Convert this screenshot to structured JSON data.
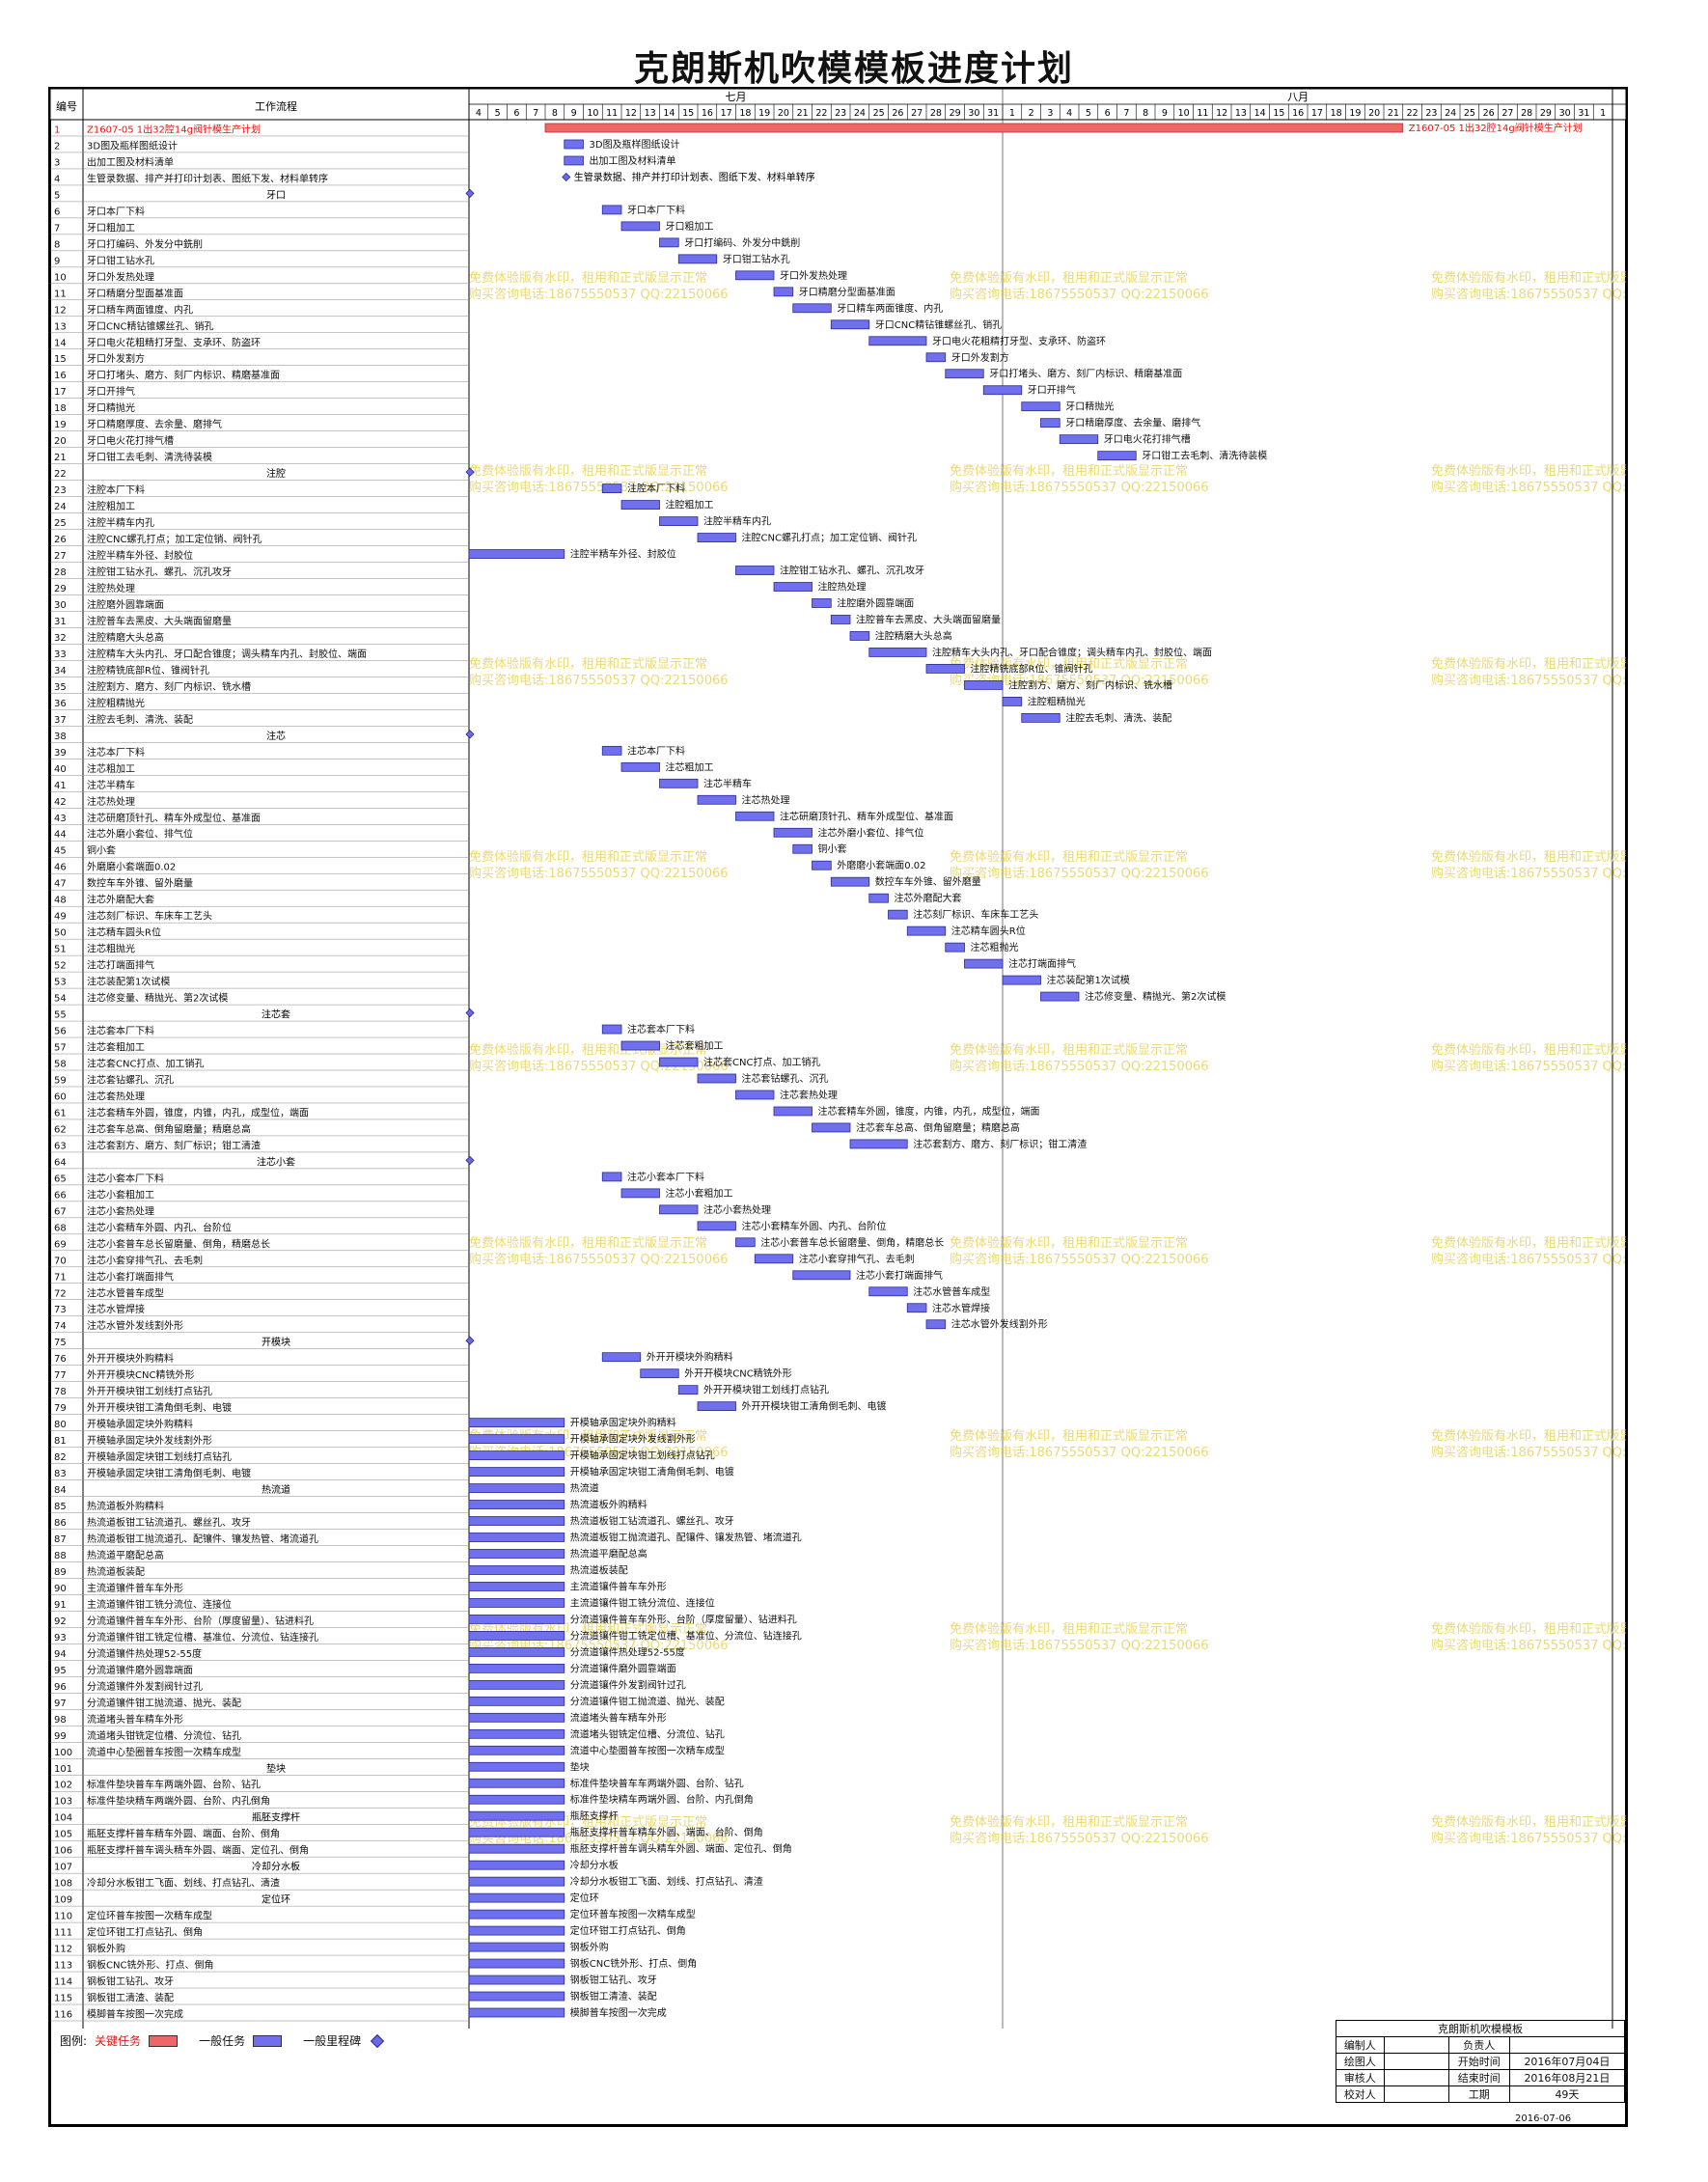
{
  "title": "克朗斯机吹模模板进度计划",
  "header": {
    "col_no": "编号",
    "col_task": "工作流程",
    "month1": "七月",
    "month2": "八月"
  },
  "legend": {
    "prefix": "图例:",
    "critical": "关键任务",
    "normal": "一般任务",
    "milestone": "一般里程碑",
    "critical_color": "#ee6666",
    "normal_color": "#7070ee",
    "milestone_color": "#6a6ae8"
  },
  "watermark": {
    "line1": "免费体验版有水印，租用和正式版显示正常",
    "line2": "购买咨询电话:18675550537 QQ:22150066",
    "color": "#e8d35a"
  },
  "title_block": {
    "project": "克朗斯机吹模模板",
    "rows": [
      [
        "编制人",
        "",
        "负责人",
        ""
      ],
      [
        "绘图人",
        "",
        "开始时间",
        "2016年07月04日"
      ],
      [
        "审核人",
        "",
        "结束时间",
        "2016年08月21日"
      ],
      [
        "校对人",
        "",
        "工期",
        "49天"
      ]
    ],
    "date": "2016-07-06"
  },
  "chart_data": {
    "type": "gantt",
    "x_unit": "date",
    "x_range": [
      "2016-07-04",
      "2016-09-01"
    ],
    "x_ticks": [
      "4",
      "5",
      "6",
      "7",
      "8",
      "9",
      "10",
      "11",
      "12",
      "13",
      "14",
      "15",
      "16",
      "17",
      "18",
      "19",
      "20",
      "21",
      "22",
      "23",
      "24",
      "25",
      "26",
      "27",
      "28",
      "29",
      "30",
      "31",
      "1",
      "2",
      "3",
      "4",
      "5",
      "6",
      "7",
      "8",
      "9",
      "10",
      "11",
      "12",
      "13",
      "14",
      "15",
      "16",
      "17",
      "18",
      "19",
      "20",
      "21",
      "22",
      "23",
      "24",
      "25",
      "26",
      "27",
      "28",
      "29",
      "30",
      "31",
      "1"
    ],
    "months": [
      {
        "name": "七月",
        "from": "2016-07-04",
        "to": "2016-07-31"
      },
      {
        "name": "八月",
        "from": "2016-08-01",
        "to": "2016-08-31"
      }
    ],
    "tasks": [
      {
        "id": 1,
        "name": "Z1607-05 1出32腔14g阀针模生产计划",
        "kind": "critical",
        "start": "2016-07-08",
        "end": "2016-08-21"
      },
      {
        "id": 2,
        "name": "3D图及瓶样图纸设计",
        "kind": "task",
        "start": "2016-07-09",
        "end": "2016-07-09"
      },
      {
        "id": 3,
        "name": "出加工图及材料清单",
        "kind": "task",
        "start": "2016-07-09",
        "end": "2016-07-09"
      },
      {
        "id": 4,
        "name": "生管录数据、排产并打印计划表、图纸下发、材料单转序",
        "kind": "milestone",
        "start": "2016-07-09",
        "end": "2016-07-09"
      },
      {
        "id": 5,
        "name": "牙口",
        "kind": "summary",
        "start": "2016-07-04",
        "end": "2016-07-04"
      },
      {
        "id": 6,
        "name": "牙口本厂下料",
        "kind": "task",
        "start": "2016-07-11",
        "end": "2016-07-11"
      },
      {
        "id": 7,
        "name": "牙口粗加工",
        "kind": "task",
        "start": "2016-07-12",
        "end": "2016-07-13"
      },
      {
        "id": 8,
        "name": "牙口打编码、外发分中銑削",
        "kind": "task",
        "start": "2016-07-14",
        "end": "2016-07-14"
      },
      {
        "id": 9,
        "name": "牙口钳工钻水孔",
        "kind": "task",
        "start": "2016-07-15",
        "end": "2016-07-16"
      },
      {
        "id": 10,
        "name": "牙口外发热处理",
        "kind": "task",
        "start": "2016-07-18",
        "end": "2016-07-19"
      },
      {
        "id": 11,
        "name": "牙口精磨分型面基准面",
        "kind": "task",
        "start": "2016-07-20",
        "end": "2016-07-20"
      },
      {
        "id": 12,
        "name": "牙口精车两面锥度、内孔",
        "kind": "task",
        "start": "2016-07-21",
        "end": "2016-07-22"
      },
      {
        "id": 13,
        "name": "牙口CNC精钻锥螺丝孔、销孔",
        "kind": "task",
        "start": "2016-07-23",
        "end": "2016-07-24"
      },
      {
        "id": 14,
        "name": "牙口电火花粗精打牙型、支承环、防盗环",
        "kind": "task",
        "start": "2016-07-25",
        "end": "2016-07-27"
      },
      {
        "id": 15,
        "name": "牙口外发割方",
        "kind": "task",
        "start": "2016-07-28",
        "end": "2016-07-28"
      },
      {
        "id": 16,
        "name": "牙口打堵头、磨方、刻厂内标识、精磨基准面",
        "kind": "task",
        "start": "2016-07-29",
        "end": "2016-07-30"
      },
      {
        "id": 17,
        "name": "牙口开排气",
        "kind": "task",
        "start": "2016-07-31",
        "end": "2016-08-01"
      },
      {
        "id": 18,
        "name": "牙口精抛光",
        "kind": "task",
        "start": "2016-08-02",
        "end": "2016-08-03"
      },
      {
        "id": 19,
        "name": "牙口精磨厚度、去余量、磨排气",
        "kind": "task",
        "start": "2016-08-03",
        "end": "2016-08-03"
      },
      {
        "id": 20,
        "name": "牙口电火花打排气槽",
        "kind": "task",
        "start": "2016-08-04",
        "end": "2016-08-05"
      },
      {
        "id": 21,
        "name": "牙口钳工去毛刺、清洗待装模",
        "kind": "task",
        "start": "2016-08-06",
        "end": "2016-08-07"
      },
      {
        "id": 22,
        "name": "注腔",
        "kind": "summary",
        "start": "2016-07-04",
        "end": "2016-07-04"
      },
      {
        "id": 23,
        "name": "注腔本厂下料",
        "kind": "task",
        "start": "2016-07-11",
        "end": "2016-07-11"
      },
      {
        "id": 24,
        "name": "注腔粗加工",
        "kind": "task",
        "start": "2016-07-12",
        "end": "2016-07-13"
      },
      {
        "id": 25,
        "name": "注腔半精车内孔",
        "kind": "task",
        "start": "2016-07-14",
        "end": "2016-07-15"
      },
      {
        "id": 26,
        "name": "注腔CNC螺孔打点；加工定位销、阀针孔",
        "kind": "task",
        "start": "2016-07-16",
        "end": "2016-07-17"
      },
      {
        "id": 27,
        "name": "注腔半精车外径、封胶位",
        "kind": "task",
        "start": "2016-07-04",
        "end": "2016-07-08"
      },
      {
        "id": 28,
        "name": "注腔钳工钻水孔、螺孔、沉孔攻牙",
        "kind": "task",
        "start": "2016-07-18",
        "end": "2016-07-19"
      },
      {
        "id": 29,
        "name": "注腔热处理",
        "kind": "task",
        "start": "2016-07-20",
        "end": "2016-07-21"
      },
      {
        "id": 30,
        "name": "注腔磨外圆靠端面",
        "kind": "task",
        "start": "2016-07-22",
        "end": "2016-07-22"
      },
      {
        "id": 31,
        "name": "注腔普车去黑皮、大头端面留磨量",
        "kind": "task",
        "start": "2016-07-23",
        "end": "2016-07-23"
      },
      {
        "id": 32,
        "name": "注腔精磨大头总高",
        "kind": "task",
        "start": "2016-07-24",
        "end": "2016-07-24"
      },
      {
        "id": 33,
        "name": "注腔精车大头内孔、牙口配合锥度；调头精车内孔、封胶位、端面",
        "kind": "task",
        "start": "2016-07-25",
        "end": "2016-07-27"
      },
      {
        "id": 34,
        "name": "注腔精铣底部R位、锥阀针孔",
        "kind": "task",
        "start": "2016-07-28",
        "end": "2016-07-29"
      },
      {
        "id": 35,
        "name": "注腔割方、磨方、刻厂内标识、铣水槽",
        "kind": "task",
        "start": "2016-07-30",
        "end": "2016-07-31"
      },
      {
        "id": 36,
        "name": "注腔粗精抛光",
        "kind": "task",
        "start": "2016-08-01",
        "end": "2016-08-01"
      },
      {
        "id": 37,
        "name": "注腔去毛刺、清洗、装配",
        "kind": "task",
        "start": "2016-08-02",
        "end": "2016-08-03"
      },
      {
        "id": 38,
        "name": "注芯",
        "kind": "summary",
        "start": "2016-07-04",
        "end": "2016-07-04"
      },
      {
        "id": 39,
        "name": "注芯本厂下料",
        "kind": "task",
        "start": "2016-07-11",
        "end": "2016-07-11"
      },
      {
        "id": 40,
        "name": "注芯粗加工",
        "kind": "task",
        "start": "2016-07-12",
        "end": "2016-07-13"
      },
      {
        "id": 41,
        "name": "注芯半精车",
        "kind": "task",
        "start": "2016-07-14",
        "end": "2016-07-15"
      },
      {
        "id": 42,
        "name": "注芯热处理",
        "kind": "task",
        "start": "2016-07-16",
        "end": "2016-07-17"
      },
      {
        "id": 43,
        "name": "注芯研磨顶针孔、精车外成型位、基准面",
        "kind": "task",
        "start": "2016-07-18",
        "end": "2016-07-19"
      },
      {
        "id": 44,
        "name": "注芯外磨小套位、排气位",
        "kind": "task",
        "start": "2016-07-20",
        "end": "2016-07-21"
      },
      {
        "id": 45,
        "name": "铜小套",
        "kind": "task",
        "start": "2016-07-21",
        "end": "2016-07-21"
      },
      {
        "id": 46,
        "name": "外磨磨小套端面0.02",
        "kind": "task",
        "start": "2016-07-22",
        "end": "2016-07-22"
      },
      {
        "id": 47,
        "name": "数控车车外锥、留外磨量",
        "kind": "task",
        "start": "2016-07-23",
        "end": "2016-07-24"
      },
      {
        "id": 48,
        "name": "注芯外磨配大套",
        "kind": "task",
        "start": "2016-07-25",
        "end": "2016-07-25"
      },
      {
        "id": 49,
        "name": "注芯刻厂标识、车床车工艺头",
        "kind": "task",
        "start": "2016-07-26",
        "end": "2016-07-26"
      },
      {
        "id": 50,
        "name": "注芯精车圆头R位",
        "kind": "task",
        "start": "2016-07-27",
        "end": "2016-07-28"
      },
      {
        "id": 51,
        "name": "注芯粗抛光",
        "kind": "task",
        "start": "2016-07-29",
        "end": "2016-07-29"
      },
      {
        "id": 52,
        "name": "注芯打端面排气",
        "kind": "task",
        "start": "2016-07-30",
        "end": "2016-07-31"
      },
      {
        "id": 53,
        "name": "注芯装配第1次试模",
        "kind": "task",
        "start": "2016-08-01",
        "end": "2016-08-02"
      },
      {
        "id": 54,
        "name": "注芯修变量、精抛光、第2次试模",
        "kind": "task",
        "start": "2016-08-03",
        "end": "2016-08-04"
      },
      {
        "id": 55,
        "name": "注芯套",
        "kind": "summary",
        "start": "2016-07-04",
        "end": "2016-07-04"
      },
      {
        "id": 56,
        "name": "注芯套本厂下料",
        "kind": "task",
        "start": "2016-07-11",
        "end": "2016-07-11"
      },
      {
        "id": 57,
        "name": "注芯套粗加工",
        "kind": "task",
        "start": "2016-07-12",
        "end": "2016-07-13"
      },
      {
        "id": 58,
        "name": "注芯套CNC打点、加工销孔",
        "kind": "task",
        "start": "2016-07-14",
        "end": "2016-07-15"
      },
      {
        "id": 59,
        "name": "注芯套钻螺孔、沉孔",
        "kind": "task",
        "start": "2016-07-16",
        "end": "2016-07-17"
      },
      {
        "id": 60,
        "name": "注芯套热处理",
        "kind": "task",
        "start": "2016-07-18",
        "end": "2016-07-19"
      },
      {
        "id": 61,
        "name": "注芯套精车外圆，锥度，内锥，内孔，成型位，端面",
        "kind": "task",
        "start": "2016-07-20",
        "end": "2016-07-21"
      },
      {
        "id": 62,
        "name": "注芯套车总高、倒角留磨量；精磨总高",
        "kind": "task",
        "start": "2016-07-22",
        "end": "2016-07-23"
      },
      {
        "id": 63,
        "name": "注芯套割方、磨方、刻厂标识；钳工清渣",
        "kind": "task",
        "start": "2016-07-24",
        "end": "2016-07-26"
      },
      {
        "id": 64,
        "name": "注芯小套",
        "kind": "summary",
        "start": "2016-07-04",
        "end": "2016-07-04"
      },
      {
        "id": 65,
        "name": "注芯小套本厂下料",
        "kind": "task",
        "start": "2016-07-11",
        "end": "2016-07-11"
      },
      {
        "id": 66,
        "name": "注芯小套粗加工",
        "kind": "task",
        "start": "2016-07-12",
        "end": "2016-07-13"
      },
      {
        "id": 67,
        "name": "注芯小套热处理",
        "kind": "task",
        "start": "2016-07-14",
        "end": "2016-07-15"
      },
      {
        "id": 68,
        "name": "注芯小套精车外圆、内孔、台阶位",
        "kind": "task",
        "start": "2016-07-16",
        "end": "2016-07-17"
      },
      {
        "id": 69,
        "name": "注芯小套普车总长留磨量、倒角，精磨总长",
        "kind": "task",
        "start": "2016-07-18",
        "end": "2016-07-18"
      },
      {
        "id": 70,
        "name": "注芯小套穿排气孔、去毛刺",
        "kind": "task",
        "start": "2016-07-19",
        "end": "2016-07-20"
      },
      {
        "id": 71,
        "name": "注芯小套打端面排气",
        "kind": "task",
        "start": "2016-07-21",
        "end": "2016-07-23"
      },
      {
        "id": 72,
        "name": "注芯水管普车成型",
        "kind": "task",
        "start": "2016-07-25",
        "end": "2016-07-26"
      },
      {
        "id": 73,
        "name": "注芯水管焊接",
        "kind": "task",
        "start": "2016-07-27",
        "end": "2016-07-27"
      },
      {
        "id": 74,
        "name": "注芯水管外发线割外形",
        "kind": "task",
        "start": "2016-07-28",
        "end": "2016-07-28"
      },
      {
        "id": 75,
        "name": "开模块",
        "kind": "summary",
        "start": "2016-07-04",
        "end": "2016-07-04"
      },
      {
        "id": 76,
        "name": "外开开模块外购精料",
        "kind": "task",
        "start": "2016-07-11",
        "end": "2016-07-12"
      },
      {
        "id": 77,
        "name": "外开开模块CNC精铣外形",
        "kind": "task",
        "start": "2016-07-13",
        "end": "2016-07-14"
      },
      {
        "id": 78,
        "name": "外开开模块钳工划线打点钻孔",
        "kind": "task",
        "start": "2016-07-15",
        "end": "2016-07-15"
      },
      {
        "id": 79,
        "name": "外开开模块钳工清角倒毛刺、电镀",
        "kind": "task",
        "start": "2016-07-16",
        "end": "2016-07-17"
      },
      {
        "id": 80,
        "name": "开模轴承固定块外购精料",
        "kind": "task",
        "start": "2016-07-04",
        "end": "2016-07-08"
      },
      {
        "id": 81,
        "name": "开模轴承固定块外发线割外形",
        "kind": "task",
        "start": "2016-07-04",
        "end": "2016-07-08"
      },
      {
        "id": 82,
        "name": "开模轴承固定块钳工划线打点钻孔",
        "kind": "task",
        "start": "2016-07-04",
        "end": "2016-07-08"
      },
      {
        "id": 83,
        "name": "开模轴承固定块钳工清角倒毛刺、电镀",
        "kind": "task",
        "start": "2016-07-04",
        "end": "2016-07-08"
      },
      {
        "id": 84,
        "name": "热流道",
        "kind": "summary",
        "start": "2016-07-04",
        "end": "2016-07-08"
      },
      {
        "id": 85,
        "name": "热流道板外购精料",
        "kind": "task",
        "start": "2016-07-04",
        "end": "2016-07-08"
      },
      {
        "id": 86,
        "name": "热流道板钳工钻流道孔、螺丝孔、攻牙",
        "kind": "task",
        "start": "2016-07-04",
        "end": "2016-07-08"
      },
      {
        "id": 87,
        "name": "热流道板钳工抛流道孔、配镶件、镶发热管、堵流道孔",
        "kind": "task",
        "start": "2016-07-04",
        "end": "2016-07-08"
      },
      {
        "id": 88,
        "name": "热流道平磨配总高",
        "kind": "task",
        "start": "2016-07-04",
        "end": "2016-07-08"
      },
      {
        "id": 89,
        "name": "热流道板装配",
        "kind": "task",
        "start": "2016-07-04",
        "end": "2016-07-08"
      },
      {
        "id": 90,
        "name": "主流道镶件普车车外形",
        "kind": "task",
        "start": "2016-07-04",
        "end": "2016-07-08"
      },
      {
        "id": 91,
        "name": "主流道镶件钳工铣分流位、连接位",
        "kind": "task",
        "start": "2016-07-04",
        "end": "2016-07-08"
      },
      {
        "id": 92,
        "name": "分流道镶件普车车外形、台阶（厚度留量）、钻进料孔",
        "kind": "task",
        "start": "2016-07-04",
        "end": "2016-07-08"
      },
      {
        "id": 93,
        "name": "分流道镶件钳工铣定位槽、基准位、分流位、钻连接孔",
        "kind": "task",
        "start": "2016-07-04",
        "end": "2016-07-08"
      },
      {
        "id": 94,
        "name": "分流道镶件热处理52-55度",
        "kind": "task",
        "start": "2016-07-04",
        "end": "2016-07-08"
      },
      {
        "id": 95,
        "name": "分流道镶件磨外圆靠端面",
        "kind": "task",
        "start": "2016-07-04",
        "end": "2016-07-08"
      },
      {
        "id": 96,
        "name": "分流道镶件外发割阀针过孔",
        "kind": "task",
        "start": "2016-07-04",
        "end": "2016-07-08"
      },
      {
        "id": 97,
        "name": "分流道镶件钳工抛流道、抛光、装配",
        "kind": "task",
        "start": "2016-07-04",
        "end": "2016-07-08"
      },
      {
        "id": 98,
        "name": "流道堵头普车精车外形",
        "kind": "task",
        "start": "2016-07-04",
        "end": "2016-07-08"
      },
      {
        "id": 99,
        "name": "流道堵头钳铣定位槽、分流位、钻孔",
        "kind": "task",
        "start": "2016-07-04",
        "end": "2016-07-08"
      },
      {
        "id": 100,
        "name": "流道中心垫圈普车按图一次精车成型",
        "kind": "task",
        "start": "2016-07-04",
        "end": "2016-07-08"
      },
      {
        "id": 101,
        "name": "垫块",
        "kind": "summary",
        "start": "2016-07-04",
        "end": "2016-07-08"
      },
      {
        "id": 102,
        "name": "标准件垫块普车车两端外圆、台阶、钻孔",
        "kind": "task",
        "start": "2016-07-04",
        "end": "2016-07-08"
      },
      {
        "id": 103,
        "name": "标准件垫块精车两端外圆、台阶、内孔倒角",
        "kind": "task",
        "start": "2016-07-04",
        "end": "2016-07-08"
      },
      {
        "id": 104,
        "name": "瓶胚支撑杆",
        "kind": "summary",
        "start": "2016-07-04",
        "end": "2016-07-08"
      },
      {
        "id": 105,
        "name": "瓶胚支撑杆普车精车外圆、端面、台阶、倒角",
        "kind": "task",
        "start": "2016-07-04",
        "end": "2016-07-08"
      },
      {
        "id": 106,
        "name": "瓶胚支撑杆普车调头精车外圆、端面、定位孔、倒角",
        "kind": "task",
        "start": "2016-07-04",
        "end": "2016-07-08"
      },
      {
        "id": 107,
        "name": "冷却分水板",
        "kind": "summary",
        "start": "2016-07-04",
        "end": "2016-07-08"
      },
      {
        "id": 108,
        "name": "冷却分水板钳工飞面、划线、打点钻孔、清渣",
        "kind": "task",
        "start": "2016-07-04",
        "end": "2016-07-08"
      },
      {
        "id": 109,
        "name": "定位环",
        "kind": "summary",
        "start": "2016-07-04",
        "end": "2016-07-08"
      },
      {
        "id": 110,
        "name": "定位环普车按图一次精车成型",
        "kind": "task",
        "start": "2016-07-04",
        "end": "2016-07-08"
      },
      {
        "id": 111,
        "name": "定位环钳工打点钻孔、倒角",
        "kind": "task",
        "start": "2016-07-04",
        "end": "2016-07-08"
      },
      {
        "id": 112,
        "name": "钢板外购",
        "kind": "task",
        "start": "2016-07-04",
        "end": "2016-07-08"
      },
      {
        "id": 113,
        "name": "钢板CNC铣外形、打点、倒角",
        "kind": "task",
        "start": "2016-07-04",
        "end": "2016-07-08"
      },
      {
        "id": 114,
        "name": "钢板钳工钻孔、攻牙",
        "kind": "task",
        "start": "2016-07-04",
        "end": "2016-07-08"
      },
      {
        "id": 115,
        "name": "钢板钳工清渣、装配",
        "kind": "task",
        "start": "2016-07-04",
        "end": "2016-07-08"
      },
      {
        "id": 116,
        "name": "模脚普车按图一次完成",
        "kind": "task",
        "start": "2016-07-04",
        "end": "2016-07-08"
      }
    ]
  }
}
